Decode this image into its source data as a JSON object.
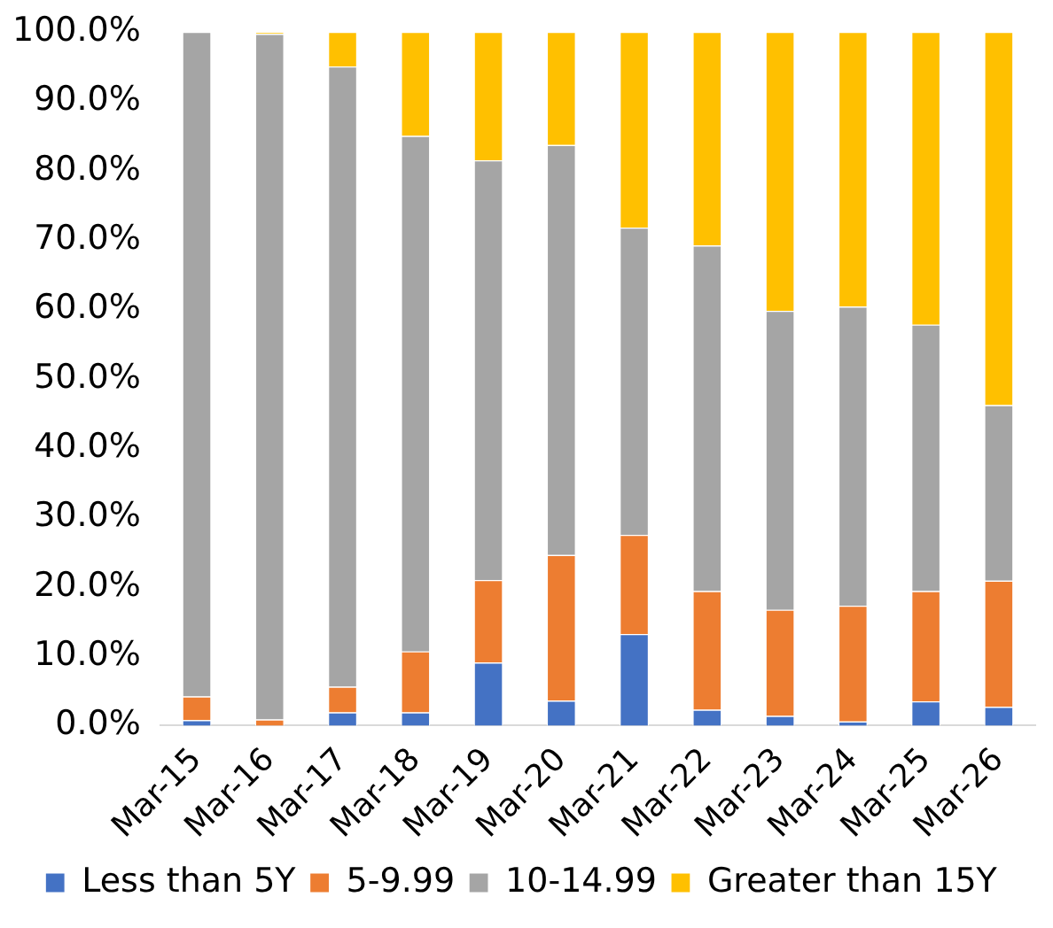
{
  "chart_data": {
    "type": "bar",
    "stacked": true,
    "categories": [
      "Mar-15",
      "Mar-16",
      "Mar-17",
      "Mar-18",
      "Mar-19",
      "Mar-20",
      "Mar-21",
      "Mar-22",
      "Mar-23",
      "Mar-24",
      "Mar-25",
      "Mar-26"
    ],
    "series": [
      {
        "name": "Less than 5Y",
        "color": "#4472c4",
        "values": [
          0.8,
          0,
          1.9,
          1.9,
          9.1,
          3.6,
          13.2,
          2.3,
          1.4,
          0.6,
          3.5,
          2.7
        ]
      },
      {
        "name": "5-9.99",
        "color": "#ed7d31",
        "values": [
          3.4,
          0.9,
          3.7,
          8.8,
          11.9,
          21.0,
          14.3,
          17.1,
          15.3,
          16.7,
          15.9,
          18.2
        ]
      },
      {
        "name": "10-14.99",
        "color": "#a5a5a5",
        "values": [
          95.8,
          98.8,
          89.4,
          74.3,
          60.5,
          59.1,
          44.3,
          49.8,
          43.1,
          43.1,
          38.4,
          25.3
        ]
      },
      {
        "name": "Greater than 15Y",
        "color": "#ffc000",
        "values": [
          0,
          0.3,
          5.0,
          15.0,
          18.5,
          16.3,
          28.2,
          30.8,
          40.2,
          39.6,
          42.2,
          53.8
        ]
      }
    ],
    "ylim": [
      0,
      100
    ],
    "yticks": [
      {
        "value": 0,
        "label": "0.0%"
      },
      {
        "value": 10,
        "label": "10.0%"
      },
      {
        "value": 20,
        "label": "20.0%"
      },
      {
        "value": 30,
        "label": "30.0%"
      },
      {
        "value": 40,
        "label": "40.0%"
      },
      {
        "value": 50,
        "label": "50.0%"
      },
      {
        "value": 60,
        "label": "60.0%"
      },
      {
        "value": 70,
        "label": "70.0%"
      },
      {
        "value": 80,
        "label": "80.0%"
      },
      {
        "value": 90,
        "label": "90.0%"
      },
      {
        "value": 100,
        "label": "100.0%"
      }
    ],
    "grid": false,
    "legend": "bottom"
  }
}
